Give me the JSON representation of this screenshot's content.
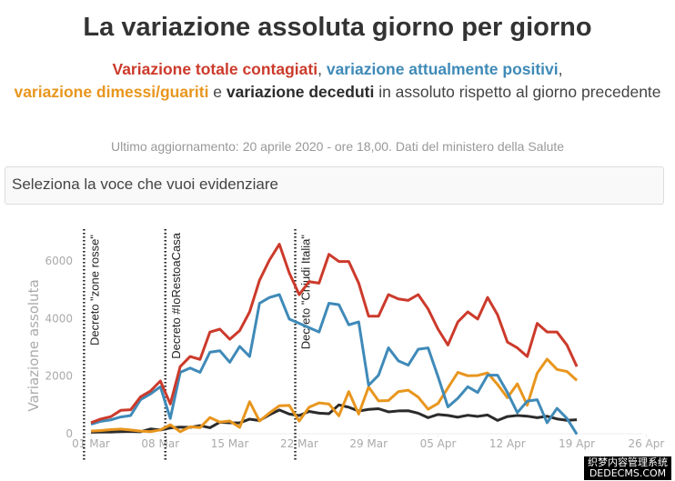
{
  "title": "La variazione assoluta giorno per giorno",
  "subtitle": {
    "s1": "Variazione totale contagiati",
    "c1": ", ",
    "s2": "variazione attualmente positivi",
    "c2": ",",
    "s3": "variazione dimessi/guariti",
    "c3": " e ",
    "s4": "variazione deceduti",
    "c4": " in assoluto rispetto al giorno precedente"
  },
  "update": "Ultimo aggiornamento: 20 aprile 2020 - ore 18,00. Dati del ministero della Salute",
  "selector": {
    "placeholder": "Seleziona la voce che vuoi evidenziare"
  },
  "watermark": {
    "line1": "织梦内容管理系统",
    "line2": "DEDECMS.COM"
  },
  "colors": {
    "red": "#cc3a2b",
    "blue": "#3f8ab8",
    "orange": "#e8961e",
    "black": "#2b2b2b"
  },
  "chart_data": {
    "type": "line",
    "ylabel": "Variazione assoluta",
    "ylim": [
      -100,
      7000
    ],
    "yticks": [
      0,
      2000,
      4000,
      6000
    ],
    "start_date": "2020-03-01",
    "xticks": [
      "01 Mar",
      "08 Mar",
      "15 Mar",
      "22 Mar",
      "29 Mar",
      "05 Apr",
      "12 Apr",
      "19 Apr",
      "26 Apr"
    ],
    "grid": false,
    "events": [
      {
        "day": "29 Feb",
        "label": "Decreto \"zone rosse\""
      },
      {
        "day": "08 Mar",
        "label": "Decreto #IoRestoaCasa"
      },
      {
        "day": "21 Mar",
        "label": "Decreto \"Chiudi Italia\""
      }
    ],
    "series": [
      {
        "name": "Variazione totale contagiati",
        "color": "#cc3a2b",
        "values": [
          350,
          480,
          560,
          780,
          800,
          1250,
          1450,
          1800,
          1000,
          2300,
          2650,
          2550,
          3500,
          3600,
          3250,
          3550,
          4200,
          5300,
          6000,
          6550,
          5550,
          4800,
          5250,
          5200,
          6200,
          5950,
          5950,
          5200,
          4050,
          4050,
          4800,
          4650,
          4600,
          4800,
          4300,
          3600,
          3050,
          3850,
          4200,
          3950,
          4700,
          4100,
          3150,
          2950,
          2650,
          3800,
          3500,
          3500,
          3050,
          2300
        ]
      },
      {
        "name": "variazione attualmente positivi",
        "color": "#3f8ab8",
        "values": [
          300,
          400,
          450,
          550,
          600,
          1150,
          1350,
          1600,
          500,
          2100,
          2250,
          2100,
          2800,
          2850,
          2450,
          3000,
          2650,
          4500,
          4700,
          4800,
          3950,
          3800,
          3650,
          3500,
          4500,
          4450,
          3750,
          3850,
          1650,
          2000,
          2950,
          2500,
          2350,
          2900,
          2950,
          1950,
          900,
          1200,
          1600,
          1400,
          2000,
          2000,
          1400,
          700,
          1100,
          1150,
          350,
          850,
          500,
          -50
        ]
      },
      {
        "name": "variazione dimessi/guariti",
        "color": "#e8961e",
        "values": [
          60,
          80,
          110,
          130,
          100,
          60,
          40,
          100,
          280,
          40,
          210,
          180,
          530,
          370,
          410,
          190,
          1080,
          410,
          690,
          940,
          950,
          410,
          890,
          1040,
          1000,
          590,
          1430,
          650,
          1590,
          1110,
          1120,
          1430,
          1480,
          1240,
          820,
          1020,
          1560,
          2100,
          1980,
          1990,
          2080,
          1680,
          1220,
          1700,
          960,
          2070,
          2560,
          2200,
          2130,
          1820
        ]
      },
      {
        "name": "variazione deceduti",
        "color": "#2b2b2b",
        "values": [
          18,
          27,
          28,
          41,
          49,
          36,
          133,
          97,
          168,
          196,
          189,
          250,
          175,
          368,
          349,
          345,
          475,
          427,
          627,
          793,
          651,
          601,
          743,
          683,
          662,
          969,
          889,
          756,
          812,
          837,
          727,
          760,
          766,
          681,
          525,
          636,
          604,
          542,
          610,
          570,
          619,
          431,
          566,
          602,
          578,
          525,
          575,
          482,
          433,
          454
        ]
      }
    ]
  }
}
